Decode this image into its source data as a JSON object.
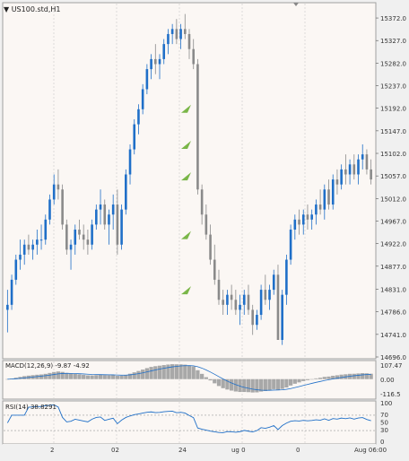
{
  "window": {
    "title": "US100.std,H1"
  },
  "price_scale": [
    "15372.0",
    "15327.0",
    "15282.0",
    "15237.0",
    "15192.0",
    "15147.0",
    "15102.0",
    "15057.0",
    "15012.0",
    "14967.0",
    "14922.0",
    "14877.0",
    "14831.0",
    "14786.0",
    "14741.0",
    "14696.0"
  ],
  "macd": {
    "label": "MACD(12,26,9) -9.87 -4.92",
    "scale": [
      "107.47",
      "0.00",
      "-116.5"
    ]
  },
  "rsi": {
    "label": "RSI(14) 38.8291",
    "scale": [
      "100",
      "70",
      "50",
      "30",
      "0"
    ]
  },
  "time_axis": {
    "fragments": [
      "2",
      "02",
      "24",
      "ug 0",
      "0",
      "Aug 06:00"
    ]
  },
  "colors": {
    "background": "#fbf7f4",
    "bull": "#1f6fc8",
    "bear": "#8a8a8a",
    "grid": "#c8c8c8",
    "arrow": "#7ab648",
    "macd_hist": "#a8a8a8",
    "signal": "#1f6fc8",
    "rsi_line": "#1f6fc8"
  },
  "chart_data": {
    "type": "candlestick",
    "series": [
      {
        "name": "US100.std,H1",
        "values": [
          [
            14790,
            14830,
            14745,
            14800
          ],
          [
            14800,
            14860,
            14790,
            14850
          ],
          [
            14850,
            14900,
            14840,
            14890
          ],
          [
            14890,
            14930,
            14870,
            14900
          ],
          [
            14900,
            14930,
            14880,
            14920
          ],
          [
            14920,
            14940,
            14900,
            14910
          ],
          [
            14910,
            14930,
            14890,
            14920
          ],
          [
            14920,
            14950,
            14900,
            14930
          ],
          [
            14930,
            14960,
            14910,
            14930
          ],
          [
            14930,
            14980,
            14920,
            14970
          ],
          [
            14970,
            15020,
            14960,
            15010
          ],
          [
            15010,
            15060,
            15000,
            15040
          ],
          [
            15040,
            15070,
            15010,
            15030
          ],
          [
            15030,
            15040,
            14950,
            14960
          ],
          [
            14960,
            14970,
            14900,
            14910
          ],
          [
            14910,
            14930,
            14870,
            14920
          ],
          [
            14920,
            14960,
            14900,
            14950
          ],
          [
            14950,
            14970,
            14930,
            14940
          ],
          [
            14940,
            14960,
            14910,
            14930
          ],
          [
            14930,
            14950,
            14900,
            14920
          ],
          [
            14920,
            14970,
            14910,
            14960
          ],
          [
            14960,
            15000,
            14950,
            14990
          ],
          [
            14990,
            15030,
            14960,
            15000
          ],
          [
            15000,
            15010,
            14950,
            14960
          ],
          [
            14960,
            14990,
            14920,
            14980
          ],
          [
            14980,
            15020,
            14950,
            15000
          ],
          [
            15000,
            15030,
            14900,
            14920
          ],
          [
            14920,
            15000,
            14910,
            14990
          ],
          [
            14990,
            15070,
            14980,
            15060
          ],
          [
            15060,
            15120,
            15040,
            15110
          ],
          [
            15110,
            15170,
            15100,
            15160
          ],
          [
            15160,
            15200,
            15140,
            15190
          ],
          [
            15190,
            15240,
            15180,
            15230
          ],
          [
            15230,
            15280,
            15220,
            15270
          ],
          [
            15270,
            15300,
            15250,
            15290
          ],
          [
            15290,
            15320,
            15260,
            15280
          ],
          [
            15280,
            15300,
            15250,
            15290
          ],
          [
            15290,
            15330,
            15280,
            15320
          ],
          [
            15320,
            15350,
            15300,
            15340
          ],
          [
            15340,
            15360,
            15320,
            15350
          ],
          [
            15350,
            15370,
            15320,
            15330
          ],
          [
            15330,
            15360,
            15310,
            15350
          ],
          [
            15350,
            15380,
            15330,
            15340
          ],
          [
            15340,
            15350,
            15290,
            15310
          ],
          [
            15310,
            15330,
            15270,
            15280
          ],
          [
            15280,
            15290,
            15020,
            15030
          ],
          [
            15030,
            15040,
            14960,
            14980
          ],
          [
            14980,
            15000,
            14930,
            14940
          ],
          [
            14940,
            14960,
            14880,
            14890
          ],
          [
            14890,
            14920,
            14840,
            14850
          ],
          [
            14850,
            14870,
            14800,
            14810
          ],
          [
            14810,
            14830,
            14780,
            14800
          ],
          [
            14800,
            14830,
            14780,
            14820
          ],
          [
            14820,
            14840,
            14790,
            14810
          ],
          [
            14810,
            14830,
            14780,
            14790
          ],
          [
            14790,
            14820,
            14760,
            14800
          ],
          [
            14800,
            14830,
            14780,
            14820
          ],
          [
            14820,
            14840,
            14780,
            14790
          ],
          [
            14790,
            14800,
            14740,
            14760
          ],
          [
            14760,
            14790,
            14750,
            14780
          ],
          [
            14780,
            14840,
            14770,
            14830
          ],
          [
            14830,
            14860,
            14800,
            14810
          ],
          [
            14810,
            14840,
            14790,
            14830
          ],
          [
            14830,
            14870,
            14820,
            14860
          ],
          [
            14860,
            14880,
            14730,
            14730
          ],
          [
            14730,
            14830,
            14720,
            14820
          ],
          [
            14820,
            14900,
            14800,
            14890
          ],
          [
            14890,
            14960,
            14880,
            14950
          ],
          [
            14950,
            14980,
            14930,
            14970
          ],
          [
            14970,
            14990,
            14940,
            14960
          ],
          [
            14960,
            14990,
            14940,
            14980
          ],
          [
            14980,
            15000,
            14950,
            14970
          ],
          [
            14970,
            14990,
            14950,
            14980
          ],
          [
            14980,
            15010,
            14960,
            15000
          ],
          [
            15000,
            15030,
            14980,
            14990
          ],
          [
            14990,
            15040,
            14970,
            15030
          ],
          [
            15030,
            15050,
            14990,
            15000
          ],
          [
            15000,
            15060,
            14990,
            15050
          ],
          [
            15050,
            15070,
            15020,
            15040
          ],
          [
            15040,
            15080,
            15030,
            15070
          ],
          [
            15070,
            15100,
            15040,
            15060
          ],
          [
            15060,
            15090,
            15040,
            15080
          ],
          [
            15080,
            15100,
            15050,
            15060
          ],
          [
            15060,
            15100,
            15040,
            15090
          ],
          [
            15090,
            15120,
            15070,
            15100
          ],
          [
            15100,
            15110,
            15060,
            15070
          ],
          [
            15070,
            15090,
            15040,
            15050
          ]
        ]
      }
    ],
    "arrows_at_price": [
      15192,
      15120,
      15057,
      14940,
      14830
    ],
    "ylim": [
      14696,
      15390
    ],
    "macd_ylim": [
      -130,
      120
    ],
    "rsi_ylim": [
      0,
      100
    ],
    "rsi_levels": [
      70,
      30
    ],
    "grid": true
  }
}
